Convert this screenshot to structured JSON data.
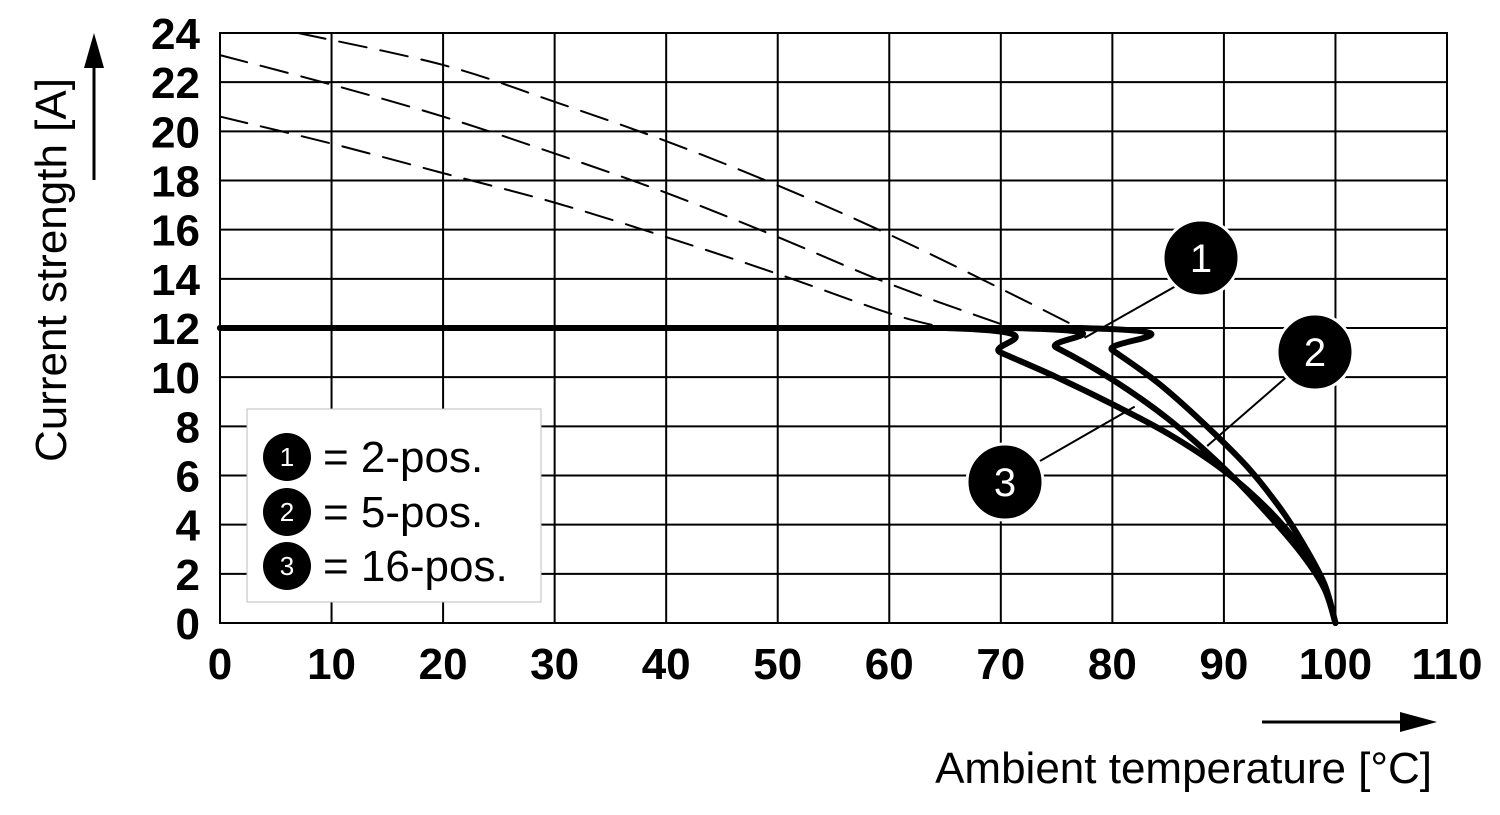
{
  "chart_data": {
    "type": "line",
    "xlabel": "Ambient temperature [°C]",
    "ylabel": "Current strength [A]",
    "xlim": [
      0,
      110
    ],
    "ylim": [
      0,
      24
    ],
    "x_ticks": [
      0,
      10,
      20,
      30,
      40,
      50,
      60,
      70,
      80,
      90,
      100,
      110
    ],
    "y_ticks": [
      0,
      2,
      4,
      6,
      8,
      10,
      12,
      14,
      16,
      18,
      20,
      22,
      24
    ],
    "grid": true,
    "legend_position": "bottom-left",
    "legend": [
      {
        "marker": "1",
        "text": "= 2-pos."
      },
      {
        "marker": "2",
        "text": "= 5-pos."
      },
      {
        "marker": "3",
        "text": "= 16-pos."
      }
    ],
    "series": [
      {
        "marker": "1",
        "style": "solid",
        "x": [
          0,
          77,
          80,
          84,
          88,
          92,
          95,
          97,
          99,
          100
        ],
        "y": [
          12,
          12,
          11.1,
          9.8,
          8.2,
          6.4,
          4.7,
          3.3,
          1.6,
          0
        ]
      },
      {
        "marker": "2",
        "style": "solid",
        "x": [
          0,
          71,
          75,
          80,
          85,
          90,
          94,
          97,
          99,
          100
        ],
        "y": [
          12,
          12,
          11.2,
          9.9,
          8.3,
          6.3,
          4.4,
          2.8,
          1.4,
          0
        ]
      },
      {
        "marker": "3",
        "style": "solid",
        "x": [
          0,
          65,
          70,
          75,
          80,
          85,
          90,
          94,
          97,
          99,
          100
        ],
        "y": [
          12,
          12,
          11.0,
          10.0,
          8.9,
          7.7,
          6.2,
          4.6,
          3.0,
          1.5,
          0
        ]
      },
      {
        "marker": "1",
        "style": "dashed",
        "x": [
          7,
          20,
          30,
          40,
          50,
          60,
          70,
          77
        ],
        "y": [
          24,
          22.7,
          21.2,
          19.6,
          17.8,
          15.8,
          13.6,
          12
        ]
      },
      {
        "marker": "2",
        "style": "dashed",
        "x": [
          0,
          10,
          20,
          30,
          40,
          50,
          60,
          71
        ],
        "y": [
          23.1,
          21.9,
          20.6,
          19.1,
          17.5,
          15.7,
          13.8,
          12
        ]
      },
      {
        "marker": "3",
        "style": "dashed",
        "x": [
          0,
          10,
          20,
          30,
          40,
          50,
          60,
          65
        ],
        "y": [
          20.6,
          19.5,
          18.3,
          17.1,
          15.7,
          14.2,
          12.6,
          12
        ]
      }
    ],
    "callouts": [
      {
        "label": "1",
        "point": [
          77.5,
          11.6
        ]
      },
      {
        "label": "2",
        "point": [
          88.5,
          7.2
        ]
      },
      {
        "label": "3",
        "point": [
          82,
          8.8
        ]
      }
    ]
  }
}
